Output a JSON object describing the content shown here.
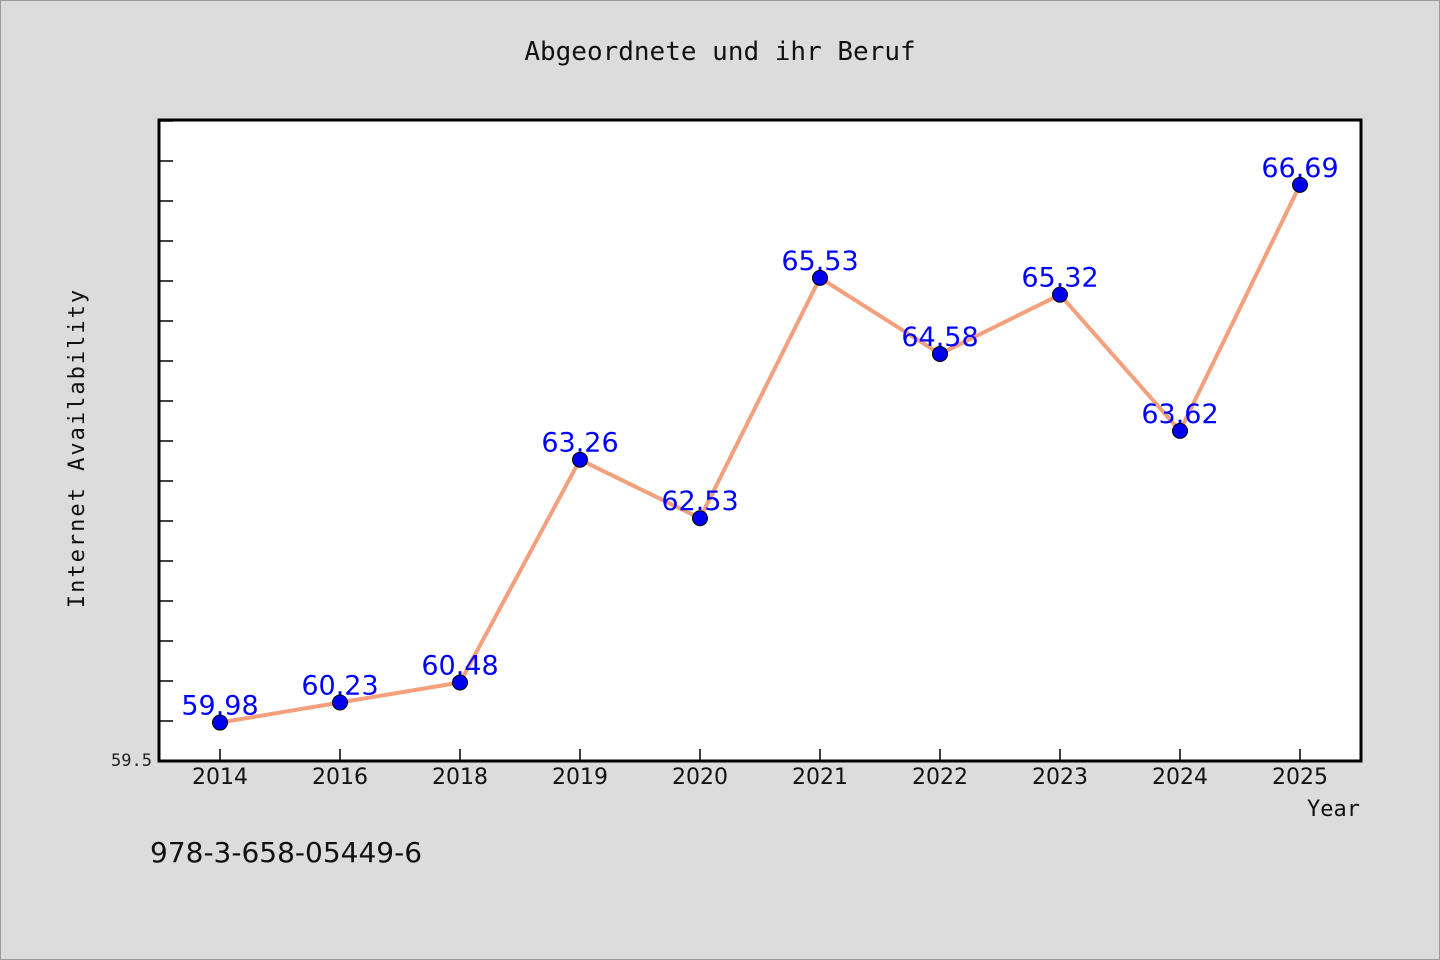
{
  "chart_data": {
    "type": "line",
    "title": "Abgeordnete und ihr Beruf",
    "xlabel": "Year",
    "ylabel": "Internet Availability",
    "categories": [
      "2014",
      "2016",
      "2018",
      "2019",
      "2020",
      "2021",
      "2022",
      "2023",
      "2024",
      "2025"
    ],
    "series": [
      {
        "values": [
          59.98,
          60.23,
          60.48,
          63.26,
          62.53,
          65.53,
          64.58,
          65.32,
          63.62,
          66.69
        ]
      }
    ],
    "data_labels": [
      "59.98",
      "60.23",
      "60.48",
      "63.26",
      "62.53",
      "65.53",
      "64.58",
      "65.32",
      "63.62",
      "66.69"
    ],
    "ytick_label": "59.5",
    "ylim": [
      59.5,
      67.5
    ],
    "grid": false,
    "legend": "none",
    "line_color": "#f4a07c",
    "marker_color": "#0000ee",
    "label_color": "#0000ff"
  },
  "footer_text": "978-3-658-05449-6"
}
